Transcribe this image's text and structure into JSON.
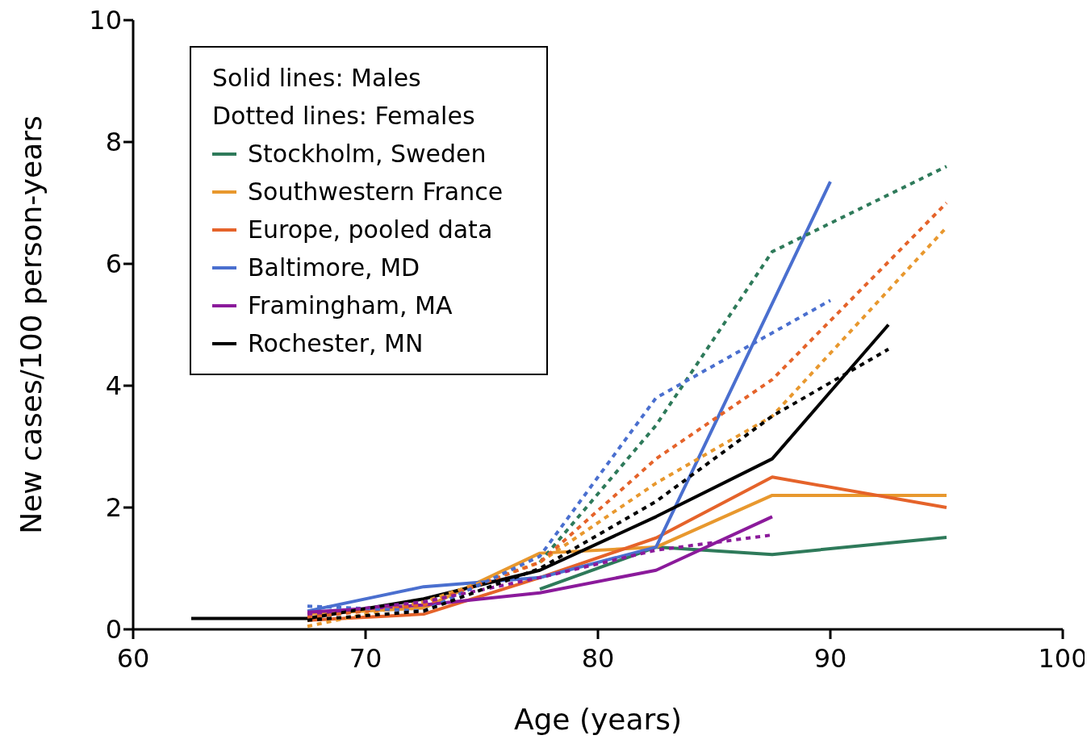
{
  "chart_data": {
    "type": "line",
    "xlabel": "Age (years)",
    "ylabel": "New cases/100 person-years",
    "legend_title": "Solid lines: Males\nDotted lines: Females",
    "legend": "top left",
    "grid": false,
    "marker": "none",
    "xlim": [
      60,
      100
    ],
    "xticks": [
      60,
      70,
      80,
      90,
      100
    ],
    "ylim": [
      0,
      10
    ],
    "yticks": [
      0,
      2,
      4,
      6,
      8,
      10
    ],
    "series": [
      {
        "name": "Stockholm, Sweden",
        "color": "#2e7a5a",
        "line_style": "solid",
        "x": [
          77.5,
          82.5,
          87.5,
          95
        ],
        "values": [
          0.66,
          1.35,
          1.23,
          1.51
        ]
      },
      {
        "name": "Southwestern France",
        "color": "#e8982e",
        "line_style": "solid",
        "x": [
          67.5,
          72.5,
          77.5,
          82.5,
          87.5,
          95
        ],
        "values": [
          0.25,
          0.35,
          1.25,
          1.35,
          2.2,
          2.2
        ]
      },
      {
        "name": "Europe, pooled data",
        "color": "#e5632a",
        "line_style": "solid",
        "x": [
          67.5,
          72.5,
          77.5,
          82.5,
          87.5,
          95
        ],
        "values": [
          0.15,
          0.25,
          0.85,
          1.5,
          2.5,
          2.0
        ]
      },
      {
        "name": "Baltimore, MD",
        "color": "#4a6fcf",
        "line_style": "solid",
        "x": [
          67.5,
          72.5,
          77.5,
          82.5,
          90
        ],
        "values": [
          0.3,
          0.7,
          0.85,
          1.35,
          7.35
        ]
      },
      {
        "name": "Framingham, MA",
        "color": "#8b1a9b",
        "line_style": "solid",
        "x": [
          67.5,
          72.5,
          77.5,
          82.5,
          87.5
        ],
        "values": [
          0.28,
          0.4,
          0.6,
          0.97,
          1.85
        ]
      },
      {
        "name": "Rochester, MN",
        "color": "#000000",
        "line_style": "solid",
        "x": [
          62.5,
          67.5,
          72.5,
          77.5,
          82.5,
          87.5,
          92.5
        ],
        "values": [
          0.18,
          0.18,
          0.5,
          0.97,
          1.85,
          2.8,
          5.0
        ]
      },
      {
        "color": "#2e7a5a",
        "line_style": "dotted",
        "x": [
          77.5,
          82.5,
          87.5,
          95
        ],
        "values": [
          1.1,
          3.35,
          6.2,
          7.6
        ]
      },
      {
        "color": "#e8982e",
        "line_style": "dotted",
        "x": [
          67.5,
          72.5,
          77.5,
          82.5,
          87.5,
          95
        ],
        "values": [
          0.05,
          0.45,
          1.1,
          2.4,
          3.5,
          6.6
        ]
      },
      {
        "color": "#e5632a",
        "line_style": "dotted",
        "x": [
          67.5,
          72.5,
          77.5,
          82.5,
          87.5,
          95
        ],
        "values": [
          0.2,
          0.4,
          1.1,
          2.8,
          4.1,
          7.0
        ]
      },
      {
        "color": "#4a6fcf",
        "line_style": "dotted",
        "x": [
          67.5,
          72.5,
          77.5,
          82.5,
          90
        ],
        "values": [
          0.38,
          0.3,
          1.2,
          3.8,
          5.4
        ]
      },
      {
        "color": "#8b1a9b",
        "line_style": "dotted",
        "x": [
          67.5,
          72.5,
          77.5,
          82.5,
          87.5
        ],
        "values": [
          0.25,
          0.45,
          0.85,
          1.3,
          1.55
        ]
      },
      {
        "color": "#000000",
        "line_style": "dotted",
        "x": [
          67.5,
          72.5,
          77.5,
          82.5,
          87.5,
          92.5
        ],
        "values": [
          0.15,
          0.3,
          1.0,
          2.1,
          3.5,
          4.6
        ]
      }
    ]
  }
}
